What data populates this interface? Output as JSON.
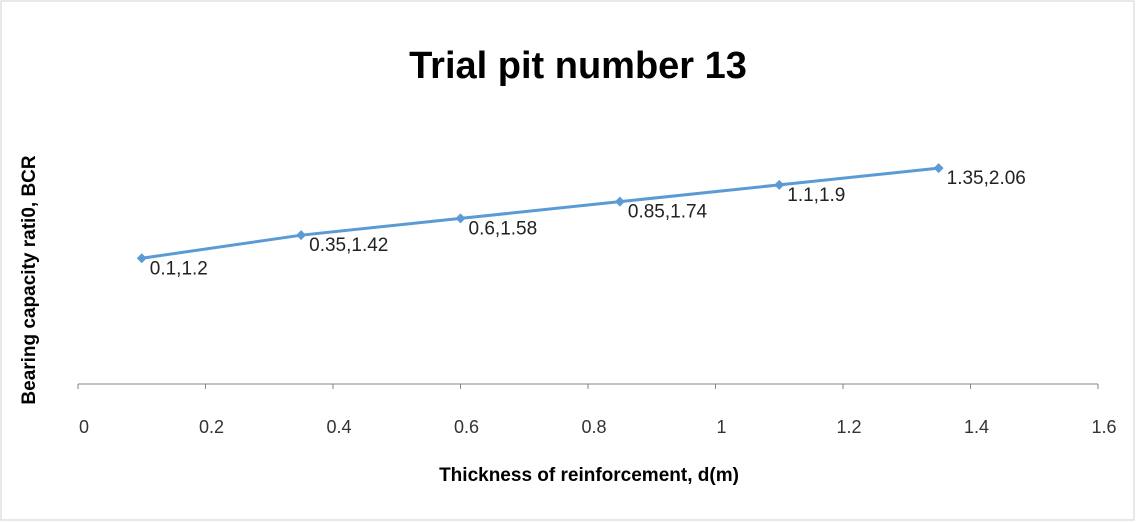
{
  "chart_data": {
    "type": "line",
    "title": "Trial pit number 13",
    "x_label": "Thickness of reinforcement, d(m)",
    "y_label": "Bearing capacity rati0, BCR",
    "x": [
      0.1,
      0.35,
      0.6,
      0.85,
      1.1,
      1.35
    ],
    "values": [
      1.2,
      1.42,
      1.58,
      1.74,
      1.9,
      2.06
    ],
    "value_labels": [
      "0.1,1.2",
      "0.35,1.42",
      "0.6,1.58",
      "0.85,1.74",
      "1.1,1.9",
      "1.35,2.06"
    ],
    "color": "#5b9bd5",
    "xlim": [
      0,
      1.6
    ],
    "xticks": [
      0,
      0.2,
      0.4,
      0.6,
      0.8,
      1,
      1.2,
      1.4,
      1.6
    ],
    "ylim": [
      0,
      2.5
    ]
  }
}
